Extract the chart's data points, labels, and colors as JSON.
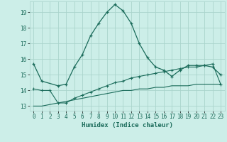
{
  "xlabel": "Humidex (Indice chaleur)",
  "background_color": "#cceee8",
  "grid_color": "#aad4cc",
  "line_color": "#1a6b5a",
  "xlim": [
    -0.5,
    23.5
  ],
  "ylim": [
    12.7,
    19.7
  ],
  "yticks": [
    13,
    14,
    15,
    16,
    17,
    18,
    19
  ],
  "xticks": [
    0,
    1,
    2,
    3,
    4,
    5,
    6,
    7,
    8,
    9,
    10,
    11,
    12,
    13,
    14,
    15,
    16,
    17,
    18,
    19,
    20,
    21,
    22,
    23
  ],
  "series1_x": [
    0,
    1,
    3,
    4,
    5,
    6,
    7,
    8,
    9,
    10,
    11,
    12,
    13,
    14,
    15,
    16,
    17,
    18,
    19,
    20,
    21,
    22,
    23
  ],
  "series1_y": [
    15.7,
    14.6,
    14.3,
    14.4,
    15.5,
    16.3,
    17.5,
    18.3,
    19.0,
    19.5,
    19.1,
    18.3,
    17.0,
    16.1,
    15.5,
    15.3,
    14.9,
    15.3,
    15.6,
    15.6,
    15.6,
    15.5,
    15.0
  ],
  "series2_x": [
    0,
    1,
    2,
    3,
    4,
    5,
    6,
    7,
    8,
    9,
    10,
    11,
    12,
    13,
    14,
    15,
    16,
    17,
    18,
    19,
    20,
    21,
    22,
    23
  ],
  "series2_y": [
    14.1,
    14.0,
    14.0,
    13.2,
    13.2,
    13.5,
    13.7,
    13.9,
    14.1,
    14.3,
    14.5,
    14.6,
    14.8,
    14.9,
    15.0,
    15.1,
    15.2,
    15.3,
    15.4,
    15.5,
    15.5,
    15.6,
    15.7,
    14.4
  ],
  "series3_x": [
    0,
    1,
    2,
    3,
    4,
    5,
    6,
    7,
    8,
    9,
    10,
    11,
    12,
    13,
    14,
    15,
    16,
    17,
    18,
    19,
    20,
    21,
    22,
    23
  ],
  "series3_y": [
    13.0,
    13.0,
    13.1,
    13.2,
    13.3,
    13.4,
    13.5,
    13.6,
    13.7,
    13.8,
    13.9,
    14.0,
    14.0,
    14.1,
    14.1,
    14.2,
    14.2,
    14.3,
    14.3,
    14.3,
    14.4,
    14.4,
    14.4,
    14.4
  ]
}
